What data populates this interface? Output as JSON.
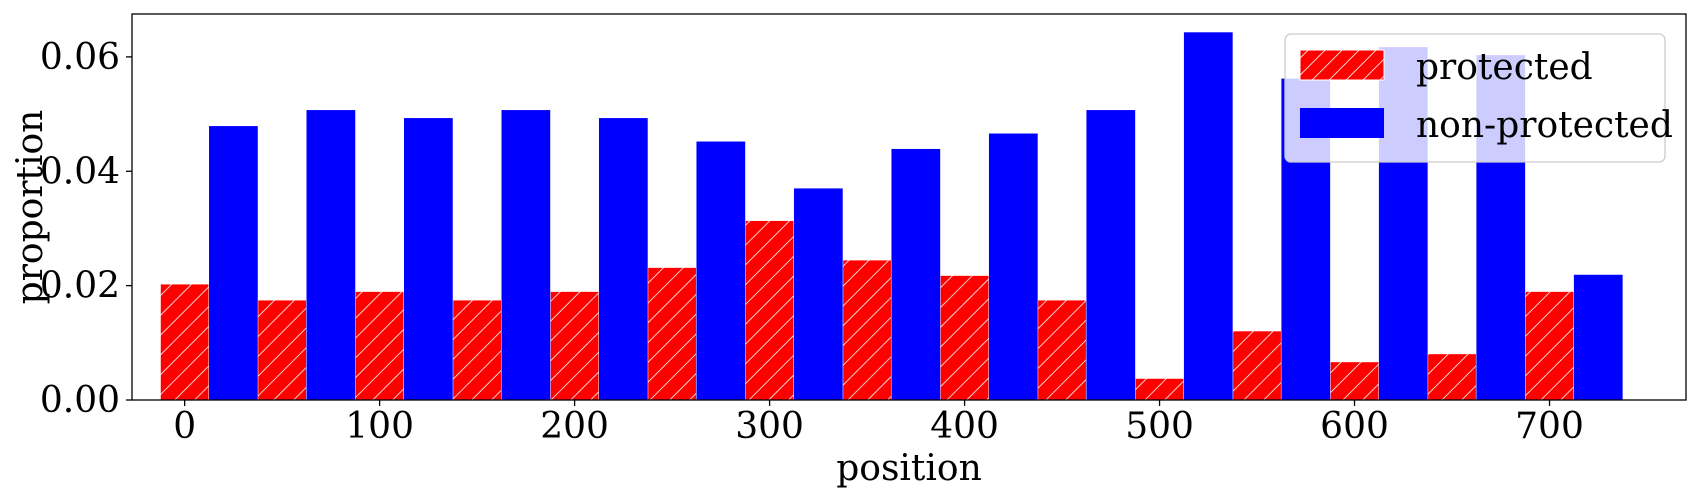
{
  "chart_data": {
    "type": "bar",
    "xlabel": "position",
    "ylabel": "proportion",
    "xlim": [
      -27,
      770
    ],
    "ylim": [
      0,
      0.0675
    ],
    "x_ticks": [
      0,
      100,
      200,
      300,
      400,
      500,
      600,
      700
    ],
    "y_ticks": [
      0.0,
      0.02,
      0.04,
      0.06
    ],
    "y_tick_labels": [
      "0.00",
      "0.02",
      "0.04",
      "0.06"
    ],
    "grid": false,
    "legend_position": "top-right",
    "series": [
      {
        "name": "protected",
        "color": "#ff0000",
        "hatch": "diagonal-white",
        "x": [
          0,
          50,
          100,
          150,
          200,
          250,
          300,
          350,
          400,
          450,
          500,
          550,
          600,
          650,
          700
        ],
        "values": [
          0.0203,
          0.0175,
          0.019,
          0.0175,
          0.019,
          0.0232,
          0.0314,
          0.0245,
          0.0218,
          0.0175,
          0.0038,
          0.0121,
          0.0067,
          0.0081,
          0.019
        ]
      },
      {
        "name": "non-protected",
        "color": "#0000ff",
        "x": [
          25,
          75,
          125,
          175,
          225,
          275,
          325,
          375,
          425,
          475,
          525,
          575,
          625,
          675,
          725
        ],
        "values": [
          0.0479,
          0.0507,
          0.0493,
          0.0507,
          0.0493,
          0.0452,
          0.037,
          0.0439,
          0.0466,
          0.0507,
          0.0643,
          0.0562,
          0.0617,
          0.0603,
          0.0219
        ]
      }
    ]
  }
}
